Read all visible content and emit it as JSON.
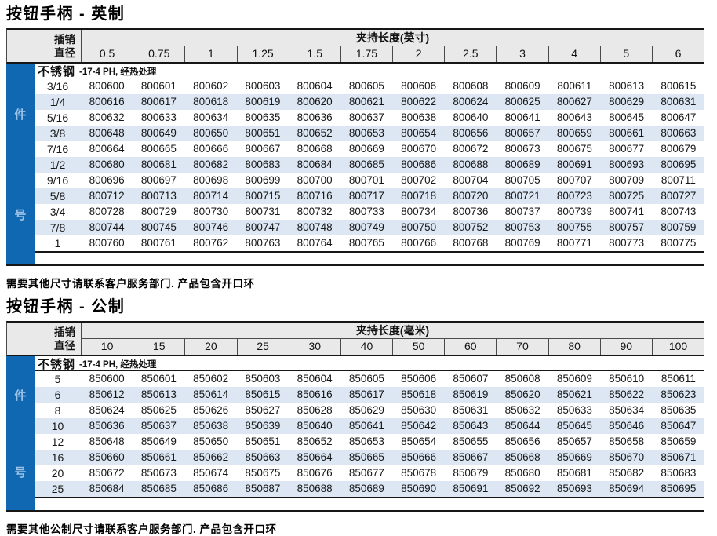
{
  "colors": {
    "accent_blue": "#1168b2",
    "sidebar_text": "#9cc2e5",
    "header_bg": "#e9e9e9",
    "row_alt_bg": "#dce7f3",
    "border_dark": "#161616"
  },
  "sections": [
    {
      "title": "按钮手柄 - 英制",
      "footnote": "需要其他尺寸请联系客户服务部门. 产品包含开口环",
      "table": {
        "corner_line1": "插销",
        "corner_line2": "直径",
        "span_header": "夹持长度(英寸)",
        "columns": [
          "0.5",
          "0.75",
          "1",
          "1.25",
          "1.5",
          "1.75",
          "2",
          "2.5",
          "3",
          "4",
          "5",
          "6"
        ],
        "material": "不锈钢",
        "material_note": "-17-4 PH, 经热处理",
        "side_label_chars": [
          "件",
          "号"
        ],
        "rows": [
          {
            "diameter": "3/16",
            "parts": [
              "800600",
              "800601",
              "800602",
              "800603",
              "800604",
              "800605",
              "800606",
              "800608",
              "800609",
              "800611",
              "800613",
              "800615"
            ]
          },
          {
            "diameter": "1/4",
            "parts": [
              "800616",
              "800617",
              "800618",
              "800619",
              "800620",
              "800621",
              "800622",
              "800624",
              "800625",
              "800627",
              "800629",
              "800631"
            ]
          },
          {
            "diameter": "5/16",
            "parts": [
              "800632",
              "800633",
              "800634",
              "800635",
              "800636",
              "800637",
              "800638",
              "800640",
              "800641",
              "800643",
              "800645",
              "800647"
            ]
          },
          {
            "diameter": "3/8",
            "parts": [
              "800648",
              "800649",
              "800650",
              "800651",
              "800652",
              "800653",
              "800654",
              "800656",
              "800657",
              "800659",
              "800661",
              "800663"
            ]
          },
          {
            "diameter": "7/16",
            "parts": [
              "800664",
              "800665",
              "800666",
              "800667",
              "800668",
              "800669",
              "800670",
              "800672",
              "800673",
              "800675",
              "800677",
              "800679"
            ]
          },
          {
            "diameter": "1/2",
            "parts": [
              "800680",
              "800681",
              "800682",
              "800683",
              "800684",
              "800685",
              "800686",
              "800688",
              "800689",
              "800691",
              "800693",
              "800695"
            ]
          },
          {
            "diameter": "9/16",
            "parts": [
              "800696",
              "800697",
              "800698",
              "800699",
              "800700",
              "800701",
              "800702",
              "800704",
              "800705",
              "800707",
              "800709",
              "800711"
            ]
          },
          {
            "diameter": "5/8",
            "parts": [
              "800712",
              "800713",
              "800714",
              "800715",
              "800716",
              "800717",
              "800718",
              "800720",
              "800721",
              "800723",
              "800725",
              "800727"
            ]
          },
          {
            "diameter": "3/4",
            "parts": [
              "800728",
              "800729",
              "800730",
              "800731",
              "800732",
              "800733",
              "800734",
              "800736",
              "800737",
              "800739",
              "800741",
              "800743"
            ]
          },
          {
            "diameter": "7/8",
            "parts": [
              "800744",
              "800745",
              "800746",
              "800747",
              "800748",
              "800749",
              "800750",
              "800752",
              "800753",
              "800755",
              "800757",
              "800759"
            ]
          },
          {
            "diameter": "1",
            "parts": [
              "800760",
              "800761",
              "800762",
              "800763",
              "800764",
              "800765",
              "800766",
              "800768",
              "800769",
              "800771",
              "800773",
              "800775"
            ]
          }
        ]
      }
    },
    {
      "title": "按钮手柄 - 公制",
      "footnote": "需要其他公制尺寸请联系客户服务部门. 产品包含开口环",
      "table": {
        "corner_line1": "插销",
        "corner_line2": "直径",
        "span_header": "夹持长度(毫米)",
        "columns": [
          "10",
          "15",
          "20",
          "25",
          "30",
          "40",
          "50",
          "60",
          "70",
          "80",
          "90",
          "100"
        ],
        "material": "不锈钢",
        "material_note": "-17-4 PH, 经热处理",
        "side_label_chars": [
          "件",
          "号"
        ],
        "rows": [
          {
            "diameter": "5",
            "parts": [
              "850600",
              "850601",
              "850602",
              "850603",
              "850604",
              "850605",
              "850606",
              "850607",
              "850608",
              "850609",
              "850610",
              "850611"
            ]
          },
          {
            "diameter": "6",
            "parts": [
              "850612",
              "850613",
              "850614",
              "850615",
              "850616",
              "850617",
              "850618",
              "850619",
              "850620",
              "850621",
              "850622",
              "850623"
            ]
          },
          {
            "diameter": "8",
            "parts": [
              "850624",
              "850625",
              "850626",
              "850627",
              "850628",
              "850629",
              "850630",
              "850631",
              "850632",
              "850633",
              "850634",
              "850635"
            ]
          },
          {
            "diameter": "10",
            "parts": [
              "850636",
              "850637",
              "850638",
              "850639",
              "850640",
              "850641",
              "850642",
              "850643",
              "850644",
              "850645",
              "850646",
              "850647"
            ]
          },
          {
            "diameter": "12",
            "parts": [
              "850648",
              "850649",
              "850650",
              "850651",
              "850652",
              "850653",
              "850654",
              "850655",
              "850656",
              "850657",
              "850658",
              "850659"
            ]
          },
          {
            "diameter": "16",
            "parts": [
              "850660",
              "850661",
              "850662",
              "850663",
              "850664",
              "850665",
              "850666",
              "850667",
              "850668",
              "850669",
              "850670",
              "850671"
            ]
          },
          {
            "diameter": "20",
            "parts": [
              "850672",
              "850673",
              "850674",
              "850675",
              "850676",
              "850677",
              "850678",
              "850679",
              "850680",
              "850681",
              "850682",
              "850683"
            ]
          },
          {
            "diameter": "25",
            "parts": [
              "850684",
              "850685",
              "850686",
              "850687",
              "850688",
              "850689",
              "850690",
              "850691",
              "850692",
              "850693",
              "850694",
              "850695"
            ]
          }
        ]
      }
    }
  ]
}
